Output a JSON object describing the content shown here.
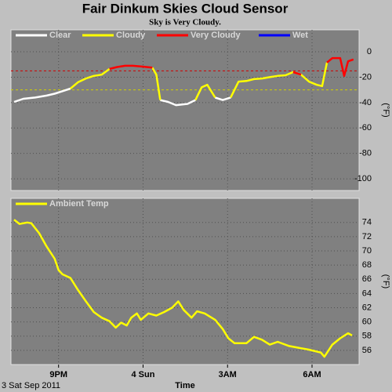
{
  "chart_data": [
    {
      "type": "line",
      "title": "Fair Dinkum Skies Cloud Sensor",
      "subtitle": "Sky is Very Cloudy.",
      "y_label": "(°F)",
      "x": [
        19.42,
        19.75,
        20.17,
        20.58,
        20.86,
        21.14,
        21.42,
        21.69,
        21.97,
        22.25,
        22.53,
        22.81,
        23.08,
        23.36,
        23.64,
        23.92,
        24.33,
        24.47,
        24.61,
        24.89,
        25.17,
        25.58,
        25.86,
        26.08,
        26.28,
        26.56,
        26.83,
        27.11,
        27.39,
        27.67,
        27.94,
        28.22,
        28.5,
        28.78,
        29.06,
        29.33,
        29.61,
        29.89,
        30.17,
        30.36,
        30.53,
        30.72,
        31.0,
        31.14,
        31.28,
        31.47
      ],
      "series": [
        {
          "name": "Clear",
          "color": "#ffffff",
          "values": [
            -39.5,
            -37,
            -36,
            -34.5,
            -33,
            -31,
            -29,
            null,
            null,
            null,
            null,
            null,
            null,
            null,
            null,
            null,
            null,
            null,
            -38,
            -39.5,
            -42,
            -41,
            -38,
            null,
            null,
            -36,
            -38,
            -36,
            null,
            null,
            null,
            null,
            null,
            null,
            null,
            null,
            null,
            null,
            null,
            null,
            null,
            null,
            null,
            null,
            null,
            null
          ]
        },
        {
          "name": "Cloudy",
          "color": "#ffff00",
          "values": [
            null,
            null,
            null,
            null,
            null,
            null,
            -29,
            -24,
            -21,
            -19,
            -18,
            -13.5,
            null,
            null,
            null,
            null,
            -12.5,
            -18,
            -38,
            null,
            null,
            null,
            -38,
            -28,
            -26,
            -36,
            null,
            -36,
            -23.5,
            -23,
            -21.5,
            -21,
            -20,
            -19,
            -18.5,
            -16,
            -18,
            -23.5,
            -26,
            -27,
            -8.5,
            null,
            null,
            null,
            null,
            null
          ]
        },
        {
          "name": "Very Cloudy",
          "color": "#ff0000",
          "values": [
            null,
            null,
            null,
            null,
            null,
            null,
            null,
            null,
            null,
            null,
            null,
            -13.5,
            -12,
            -11,
            -11,
            -11.5,
            -12.5,
            null,
            null,
            null,
            null,
            null,
            null,
            null,
            null,
            null,
            null,
            null,
            null,
            null,
            null,
            null,
            null,
            null,
            null,
            -16,
            -18,
            null,
            null,
            null,
            -8.5,
            -5,
            -5,
            -19,
            -7.5,
            -6
          ]
        },
        {
          "name": "Wet",
          "color": "#0000ff",
          "values": [
            null,
            null,
            null,
            null,
            null,
            null,
            null,
            null,
            null,
            null,
            null,
            null,
            null,
            null,
            null,
            null,
            null,
            null,
            null,
            null,
            null,
            null,
            null,
            null,
            null,
            null,
            null,
            null,
            null,
            null,
            null,
            null,
            null,
            null,
            null,
            null,
            null,
            null,
            null,
            null,
            null,
            null,
            null,
            null,
            null,
            null
          ]
        }
      ],
      "thresholds": [
        {
          "value": -15,
          "color": "#d00000"
        },
        {
          "value": -30,
          "color": "#d0d000"
        }
      ],
      "xlim": [
        19.31,
        31.67
      ],
      "ylim": [
        -109.2,
        17.3
      ],
      "yticks": [
        0,
        -20,
        -40,
        -60,
        -80,
        -100
      ],
      "grid": true
    },
    {
      "type": "line",
      "y_label": "(°F)",
      "x_label": "Time",
      "date_label": "3 Sat Sep 2011",
      "x": [
        19.42,
        19.61,
        19.89,
        20.03,
        20.31,
        20.58,
        20.86,
        21,
        21.14,
        21.42,
        21.69,
        21.97,
        22.25,
        22.53,
        22.81,
        23.03,
        23.22,
        23.42,
        23.58,
        23.78,
        23.92,
        24.19,
        24.47,
        24.75,
        25.03,
        25.25,
        25.44,
        25.72,
        25.92,
        26.19,
        26.56,
        26.83,
        27.03,
        27.25,
        27.67,
        27.94,
        28.22,
        28.5,
        28.78,
        29.19,
        29.61,
        29.89,
        30.31,
        30.44,
        30.72,
        31,
        31.28,
        31.42
      ],
      "series": [
        {
          "name": "Ambient Temp",
          "color": "#ffff00",
          "values": [
            74.4,
            73.8,
            74,
            73.9,
            72.5,
            70.6,
            68.9,
            67.3,
            66.7,
            66.2,
            64.5,
            62.9,
            61.4,
            60.6,
            60.1,
            59.2,
            59.9,
            59.5,
            60.6,
            61.2,
            60.3,
            61.2,
            60.9,
            61.4,
            62,
            62.9,
            61.7,
            60.6,
            61.5,
            61.2,
            60.3,
            59,
            57.7,
            57,
            57,
            57.9,
            57.5,
            56.8,
            57.2,
            56.6,
            56.3,
            56.1,
            55.7,
            55.1,
            56.8,
            57.7,
            58.4,
            58.1
          ]
        }
      ],
      "xlim": [
        19.31,
        31.67
      ],
      "ylim": [
        54,
        77.4
      ],
      "xticks": [
        {
          "value": 21,
          "label": "9PM"
        },
        {
          "value": 24,
          "label": "4 Sun"
        },
        {
          "value": 27,
          "label": "3AM"
        },
        {
          "value": 30,
          "label": "6AM"
        }
      ],
      "yticks": [
        74,
        72,
        70,
        68,
        66,
        64,
        62,
        60,
        58,
        56
      ],
      "grid": true
    }
  ]
}
